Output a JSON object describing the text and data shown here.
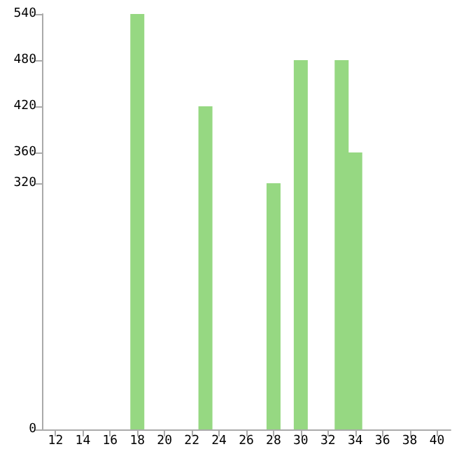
{
  "chart_data": {
    "type": "bar",
    "x": [
      18,
      23,
      28,
      30,
      33,
      34
    ],
    "values": [
      540,
      420,
      320,
      480,
      480,
      360
    ],
    "color": "#96d882",
    "xlim": [
      11,
      41
    ],
    "xticks": [
      12,
      14,
      16,
      18,
      20,
      22,
      24,
      26,
      28,
      30,
      32,
      34,
      36,
      38,
      40
    ],
    "ylim": [
      0,
      540
    ],
    "yticks": [
      0,
      320,
      360,
      420,
      480,
      540
    ],
    "grid": false
  }
}
